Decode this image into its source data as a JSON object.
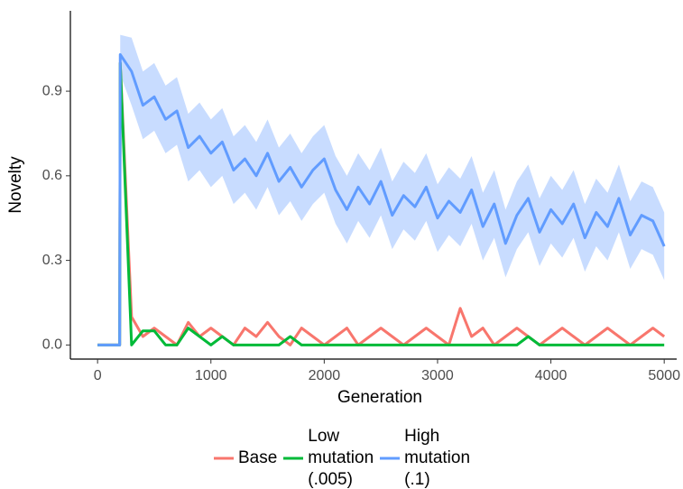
{
  "chart_data": {
    "type": "line",
    "xlabel": "Generation",
    "ylabel": "Novelty",
    "x": [
      0,
      100,
      195,
      200,
      300,
      400,
      500,
      600,
      700,
      800,
      900,
      1000,
      1100,
      1200,
      1300,
      1400,
      1500,
      1600,
      1700,
      1800,
      1900,
      2000,
      2100,
      2200,
      2300,
      2400,
      2500,
      2600,
      2700,
      2800,
      2900,
      3000,
      3100,
      3200,
      3300,
      3400,
      3500,
      3600,
      3700,
      3800,
      3900,
      4000,
      4100,
      4200,
      4300,
      4400,
      4500,
      4600,
      4700,
      4800,
      4900,
      5000
    ],
    "xlim": [
      -240,
      5110
    ],
    "ylim": [
      -0.05,
      1.185
    ],
    "xticks": [
      0,
      1000,
      2000,
      3000,
      4000,
      5000
    ],
    "yticks": [
      {
        "value": 0,
        "label": "0.0"
      },
      0.3,
      0.6,
      0.9
    ],
    "series": [
      {
        "name": "Base",
        "color": "#f8766d",
        "values": [
          0,
          0,
          0,
          1.0,
          0.1,
          0.03,
          0.06,
          0.03,
          0,
          0.08,
          0.03,
          0.06,
          0.03,
          0,
          0.06,
          0.03,
          0.08,
          0.03,
          0,
          0.06,
          0.03,
          0,
          0.03,
          0.06,
          0,
          0.03,
          0.06,
          0.03,
          0,
          0.03,
          0.06,
          0.03,
          0,
          0.13,
          0.03,
          0.06,
          0,
          0.03,
          0.06,
          0.03,
          0,
          0.03,
          0.06,
          0.03,
          0,
          0.03,
          0.06,
          0.03,
          0,
          0.03,
          0.06,
          0.03
        ]
      },
      {
        "name": "Low mutation (.005)",
        "color": "#00ba38",
        "values": [
          0,
          0,
          0,
          1.0,
          0,
          0.05,
          0.05,
          0,
          0,
          0.06,
          0.03,
          0,
          0.03,
          0,
          0,
          0,
          0,
          0,
          0.03,
          0,
          0,
          0,
          0,
          0,
          0,
          0,
          0,
          0,
          0,
          0,
          0,
          0,
          0,
          0,
          0,
          0,
          0,
          0,
          0,
          0.03,
          0,
          0,
          0,
          0,
          0,
          0,
          0,
          0,
          0,
          0,
          0,
          0
        ]
      },
      {
        "name": "High mutation (.1)",
        "color": "#619cff",
        "values": [
          0,
          0,
          0,
          1.03,
          0.97,
          0.85,
          0.88,
          0.8,
          0.83,
          0.7,
          0.74,
          0.68,
          0.72,
          0.62,
          0.66,
          0.6,
          0.68,
          0.58,
          0.63,
          0.56,
          0.62,
          0.66,
          0.55,
          0.48,
          0.56,
          0.5,
          0.58,
          0.46,
          0.53,
          0.49,
          0.56,
          0.45,
          0.51,
          0.47,
          0.55,
          0.42,
          0.5,
          0.36,
          0.46,
          0.52,
          0.4,
          0.48,
          0.43,
          0.5,
          0.38,
          0.47,
          0.42,
          0.52,
          0.39,
          0.46,
          0.44,
          0.35
        ],
        "lower": [
          0,
          0,
          0,
          0.96,
          0.85,
          0.73,
          0.76,
          0.68,
          0.71,
          0.58,
          0.62,
          0.56,
          0.6,
          0.5,
          0.54,
          0.48,
          0.56,
          0.46,
          0.51,
          0.44,
          0.5,
          0.54,
          0.43,
          0.36,
          0.44,
          0.38,
          0.46,
          0.34,
          0.41,
          0.37,
          0.44,
          0.33,
          0.39,
          0.35,
          0.43,
          0.3,
          0.38,
          0.24,
          0.34,
          0.4,
          0.28,
          0.36,
          0.31,
          0.38,
          0.26,
          0.35,
          0.3,
          0.4,
          0.27,
          0.34,
          0.32,
          0.23
        ],
        "upper": [
          0,
          0,
          0,
          1.1,
          1.09,
          0.97,
          1.0,
          0.92,
          0.95,
          0.82,
          0.86,
          0.8,
          0.84,
          0.74,
          0.78,
          0.72,
          0.8,
          0.7,
          0.75,
          0.68,
          0.74,
          0.78,
          0.67,
          0.6,
          0.68,
          0.62,
          0.7,
          0.58,
          0.65,
          0.61,
          0.68,
          0.57,
          0.63,
          0.59,
          0.67,
          0.54,
          0.62,
          0.48,
          0.58,
          0.64,
          0.52,
          0.6,
          0.55,
          0.62,
          0.5,
          0.59,
          0.54,
          0.64,
          0.51,
          0.58,
          0.56,
          0.47
        ]
      }
    ]
  }
}
